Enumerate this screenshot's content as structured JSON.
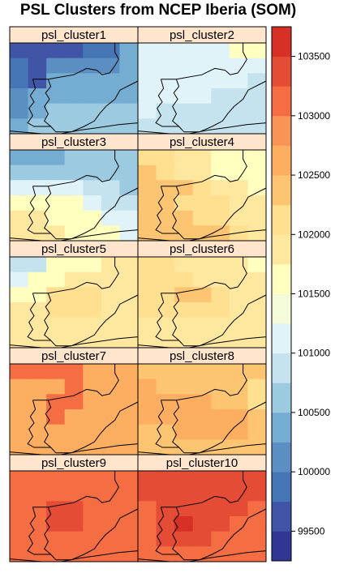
{
  "chart_data": {
    "type": "heatmap",
    "title": "PSL Clusters from NCEP Iberia (SOM)",
    "layout": {
      "columns": 2,
      "rows": 5
    },
    "grid": {
      "cols": 7,
      "rows": 6
    },
    "zlim": [
      99250,
      103750
    ],
    "colorkey": {
      "breaks": [
        99250,
        99500,
        99750,
        100000,
        100250,
        100500,
        100750,
        101000,
        101250,
        101500,
        101750,
        102000,
        102250,
        102500,
        102750,
        103000,
        103250,
        103500,
        103750
      ],
      "colors": [
        "#313695",
        "#4055a5",
        "#4575b4",
        "#5b8fc3",
        "#74add1",
        "#9ccae1",
        "#c4e3ee",
        "#e0f3f8",
        "#f3fbd8",
        "#ffffbf",
        "#fee8a0",
        "#fee090",
        "#fdc472",
        "#fdae61",
        "#f99456",
        "#f46d43",
        "#e54c35",
        "#d73027",
        "#a50026"
      ],
      "tick_labels": [
        "99500",
        "100000",
        "100500",
        "101000",
        "101500",
        "102000",
        "102500",
        "103000",
        "103500"
      ],
      "tick_values": [
        99500,
        100000,
        100500,
        101000,
        101500,
        102000,
        102500,
        103000,
        103500
      ]
    },
    "panels": [
      {
        "name": "psl_cluster1",
        "values": [
          [
            99700,
            99700,
            99700,
            99700,
            99950,
            99950,
            100400
          ],
          [
            99950,
            99700,
            100100,
            100100,
            100100,
            100100,
            100400
          ],
          [
            99950,
            99700,
            100400,
            100400,
            100400,
            100400,
            100400
          ],
          [
            100100,
            100400,
            100400,
            100400,
            100400,
            100400,
            100400
          ],
          [
            100100,
            100400,
            100700,
            100700,
            100700,
            100700,
            100700
          ],
          [
            100400,
            100700,
            100700,
            100700,
            100700,
            100700,
            100700
          ]
        ]
      },
      {
        "name": "psl_cluster2",
        "values": [
          [
            101100,
            101100,
            101100,
            101100,
            101100,
            101600,
            101600
          ],
          [
            101100,
            101100,
            101100,
            101100,
            101100,
            101100,
            101100
          ],
          [
            101100,
            101100,
            101100,
            101100,
            101100,
            101100,
            100800
          ],
          [
            101100,
            101100,
            101100,
            101100,
            100800,
            100800,
            100800
          ],
          [
            101100,
            100800,
            100800,
            100800,
            100800,
            100800,
            100800
          ],
          [
            100800,
            100800,
            100800,
            100800,
            100800,
            100800,
            100800
          ]
        ]
      },
      {
        "name": "psl_cluster3",
        "values": [
          [
            100400,
            100400,
            100400,
            100700,
            100700,
            100700,
            100700
          ],
          [
            100700,
            100700,
            100700,
            100700,
            100700,
            100700,
            100700
          ],
          [
            101100,
            101100,
            101100,
            101100,
            100900,
            100900,
            100700
          ],
          [
            101600,
            101600,
            101600,
            101600,
            101100,
            100900,
            100900
          ],
          [
            101800,
            101800,
            101600,
            101600,
            101600,
            101100,
            101100
          ],
          [
            101800,
            101800,
            101800,
            101600,
            101600,
            101600,
            101100
          ]
        ]
      },
      {
        "name": "psl_cluster4",
        "values": [
          [
            102000,
            102000,
            101800,
            101800,
            101700,
            101600,
            101600
          ],
          [
            102300,
            102000,
            101800,
            101800,
            101700,
            101700,
            101600
          ],
          [
            102300,
            102300,
            102400,
            102000,
            101800,
            101800,
            101700
          ],
          [
            102300,
            102300,
            102000,
            102000,
            102000,
            101800,
            101800
          ],
          [
            102400,
            102400,
            102400,
            102000,
            102000,
            101800,
            101800
          ],
          [
            102400,
            102400,
            102400,
            102300,
            102300,
            102000,
            101800
          ]
        ]
      },
      {
        "name": "psl_cluster5",
        "values": [
          [
            100800,
            100800,
            101600,
            101600,
            101600,
            101800,
            101800
          ],
          [
            101100,
            101600,
            101600,
            101800,
            101800,
            101800,
            101800
          ],
          [
            101600,
            101600,
            102100,
            102100,
            102100,
            101800,
            101800
          ],
          [
            101800,
            101800,
            102100,
            102100,
            102100,
            101800,
            101800
          ],
          [
            101800,
            101800,
            101800,
            101800,
            101800,
            101800,
            101800
          ],
          [
            101800,
            101800,
            101800,
            101800,
            101800,
            101800,
            101800
          ]
        ]
      },
      {
        "name": "psl_cluster6",
        "values": [
          [
            102100,
            102100,
            101800,
            101800,
            101800,
            101800,
            101600
          ],
          [
            102100,
            102100,
            102100,
            101800,
            101800,
            101800,
            101800
          ],
          [
            102100,
            102100,
            102300,
            102300,
            102100,
            101800,
            101800
          ],
          [
            102100,
            102100,
            102100,
            102100,
            102100,
            101800,
            101800
          ],
          [
            101800,
            101800,
            101800,
            101800,
            101800,
            101800,
            101800
          ],
          [
            101800,
            101800,
            101800,
            101800,
            101800,
            101800,
            101800
          ]
        ]
      },
      {
        "name": "psl_cluster7",
        "values": [
          [
            103000,
            103000,
            103000,
            103000,
            102700,
            102700,
            102700
          ],
          [
            102700,
            102700,
            102700,
            103000,
            102700,
            102700,
            102700
          ],
          [
            102700,
            102700,
            103000,
            103000,
            102700,
            102700,
            102700
          ],
          [
            102700,
            102700,
            103000,
            102700,
            102700,
            102700,
            102700
          ],
          [
            102700,
            102700,
            102700,
            102700,
            102700,
            102700,
            102700
          ],
          [
            102700,
            102700,
            102700,
            102700,
            102700,
            102700,
            102700
          ]
        ]
      },
      {
        "name": "psl_cluster8",
        "values": [
          [
            102400,
            102400,
            102400,
            102400,
            102400,
            102400,
            102400
          ],
          [
            102700,
            102400,
            102400,
            102400,
            102400,
            102400,
            102100
          ],
          [
            102700,
            102700,
            102700,
            102700,
            102400,
            102400,
            102100
          ],
          [
            102700,
            102700,
            102700,
            102700,
            102700,
            102700,
            102400
          ],
          [
            102400,
            102400,
            102700,
            102700,
            102700,
            102700,
            102400
          ],
          [
            102400,
            102400,
            102400,
            102400,
            102400,
            102400,
            102400
          ]
        ]
      },
      {
        "name": "psl_cluster9",
        "values": [
          [
            103000,
            103000,
            103000,
            103000,
            103000,
            103000,
            103000
          ],
          [
            103000,
            103000,
            103000,
            103000,
            103000,
            103000,
            103000
          ],
          [
            103000,
            103000,
            103300,
            103300,
            103000,
            103000,
            103000
          ],
          [
            103000,
            103000,
            103300,
            103300,
            103000,
            103000,
            103000
          ],
          [
            103000,
            103000,
            103000,
            103000,
            103000,
            103000,
            103000
          ],
          [
            103000,
            103000,
            103000,
            103000,
            103000,
            103000,
            103000
          ]
        ]
      },
      {
        "name": "psl_cluster10",
        "values": [
          [
            103300,
            103300,
            103300,
            103300,
            103300,
            103300,
            103300
          ],
          [
            103300,
            103300,
            103300,
            103300,
            103300,
            103300,
            103300
          ],
          [
            103000,
            103300,
            103300,
            103300,
            103300,
            103300,
            103000
          ],
          [
            103000,
            103300,
            103600,
            103300,
            103300,
            103000,
            103000
          ],
          [
            103000,
            103300,
            103300,
            103300,
            103000,
            103000,
            103000
          ],
          [
            103000,
            103000,
            103000,
            103000,
            103000,
            103000,
            103000
          ]
        ]
      }
    ]
  }
}
